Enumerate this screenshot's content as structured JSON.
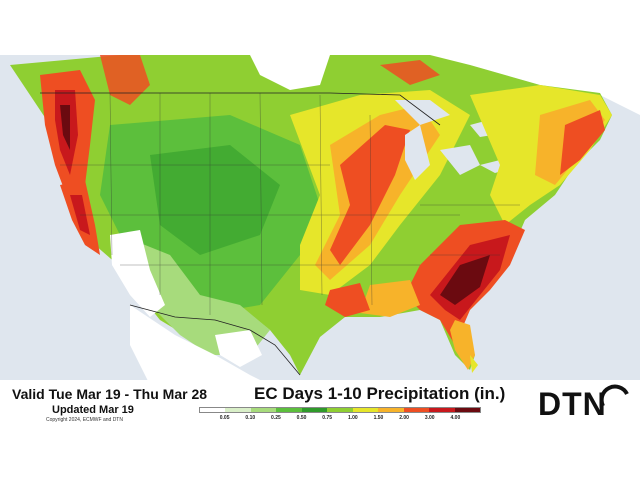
{
  "header": {
    "valid_period": "Valid Tue Mar 19 - Thu Mar 28",
    "updated": "Updated Mar 19",
    "copyright": "Copyright 2024, ECMWF and DTN",
    "title": "EC Days 1-10 Precipitation (in.)"
  },
  "logo": {
    "text": "DTN"
  },
  "legend": {
    "ticks": [
      "0.05",
      "0.10",
      "0.25",
      "0.50",
      "0.75",
      "1.00",
      "1.50",
      "2.00",
      "3.00",
      "4.00"
    ],
    "colors": [
      "#ffffff",
      "#d9efc8",
      "#a7db7c",
      "#5cbf3c",
      "#2f9a2a",
      "#8fcf32",
      "#e6e62a",
      "#f7b32a",
      "#ee4e22",
      "#c8181c",
      "#6b0a10"
    ]
  },
  "map": {
    "colors": {
      "water": "#dfe6ee",
      "canada": "#ffffff",
      "light_green": "#a7db7c",
      "green": "#5cbf3c",
      "dark_green": "#2f9a2a",
      "yellow_green": "#8fcf32",
      "yellow": "#e6e62a",
      "orange": "#f7b32a",
      "red": "#ee4e22",
      "dark_red": "#c8181c",
      "maroon": "#6b0a10"
    }
  }
}
